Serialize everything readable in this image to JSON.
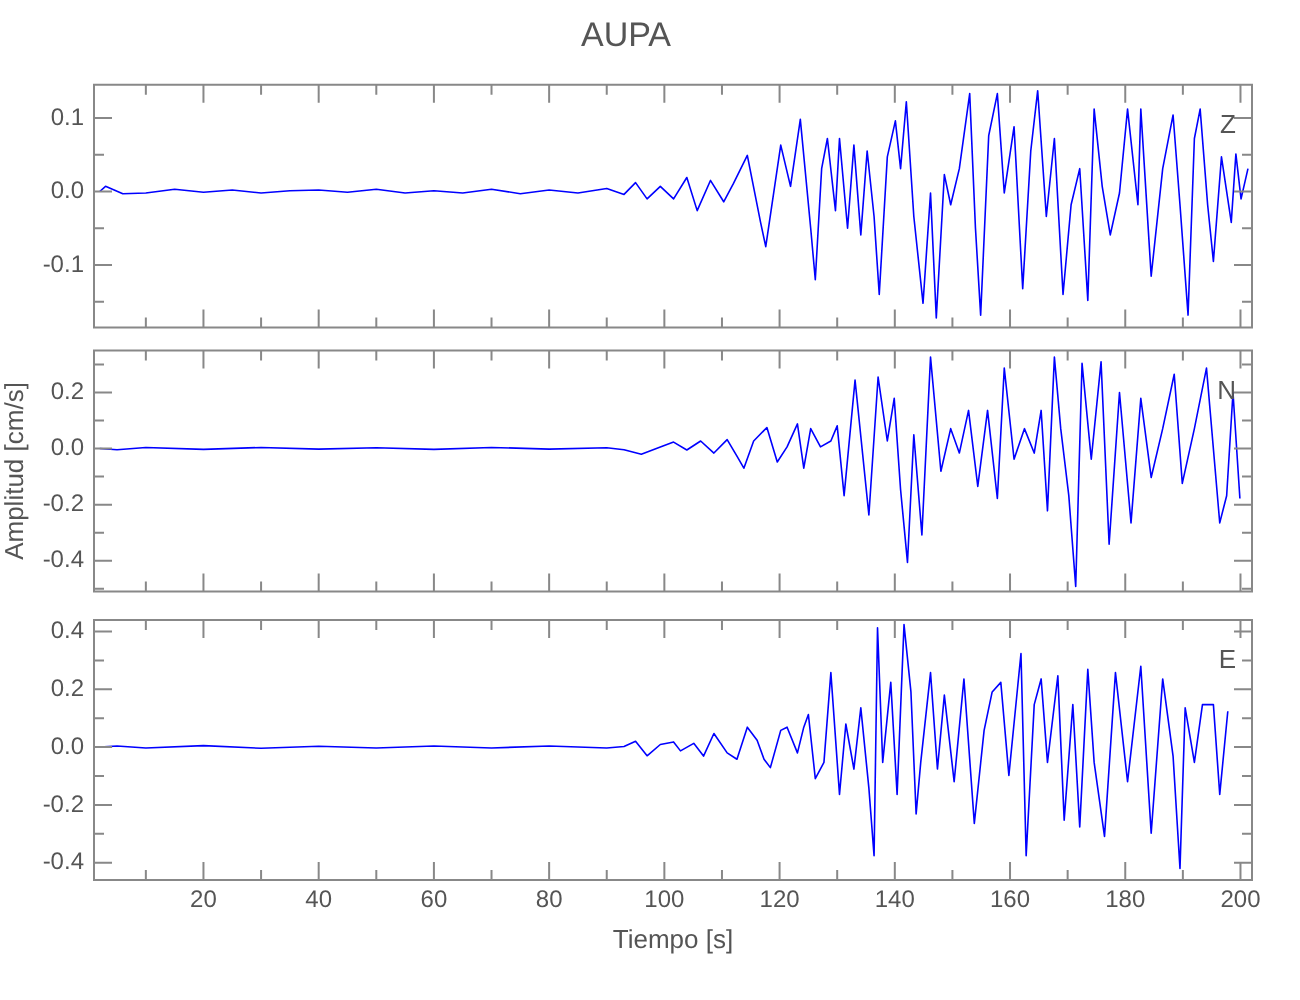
{
  "chart_data": [
    {
      "type": "line",
      "title": "AUPA",
      "color": "#0000ff",
      "marker": "none",
      "tick_labels": "y",
      "annotations": [
        "Z"
      ],
      "xlim": [
        1,
        202
      ],
      "xticks": [
        {
          "value": 10,
          "label": null
        },
        20,
        {
          "value": 30,
          "label": null
        },
        40,
        {
          "value": 50,
          "label": null
        },
        60,
        {
          "value": 70,
          "label": null
        },
        80,
        {
          "value": 90,
          "label": null
        },
        100,
        {
          "value": 110,
          "label": null
        },
        120,
        {
          "value": 130,
          "label": null
        },
        140,
        {
          "value": 150,
          "label": null
        },
        160,
        {
          "value": 170,
          "label": null
        },
        180,
        {
          "value": 190,
          "label": null
        },
        200
      ],
      "ylim": [
        -0.185,
        0.145
      ],
      "yticks": [
        {
          "value": -0.15,
          "label": null
        },
        -0.1,
        {
          "value": -0.05,
          "label": null
        },
        {
          "value": 0,
          "label": "0.0"
        },
        {
          "value": 0.05,
          "label": null
        },
        0.1
      ],
      "x": [
        2,
        3,
        6,
        10,
        15,
        20,
        25,
        30,
        35,
        40,
        45,
        50,
        55,
        60,
        65,
        70,
        75,
        80,
        85,
        90,
        93,
        95,
        97,
        99.3,
        101.6,
        103.9,
        105.7,
        108.0,
        110.3,
        112.0,
        114.4,
        116.7,
        117.6,
        120.2,
        121.9,
        123.6,
        125.4,
        126.2,
        127.3,
        128.3,
        129.7,
        130.4,
        131.8,
        132.9,
        134.1,
        135.2,
        136.4,
        137.3,
        138.7,
        140.1,
        141.0,
        142.0,
        143.3,
        144.9,
        146.2,
        147.2,
        148.6,
        149.7,
        151.2,
        153.0,
        154.0,
        154.9,
        156.3,
        157.8,
        159.0,
        160.7,
        162.2,
        163.6,
        164.8,
        166.3,
        167.7,
        169.2,
        170.6,
        172.1,
        173.5,
        174.6,
        176.0,
        177.4,
        179.0,
        180.4,
        182.2,
        182.7,
        184.5,
        186.5,
        188.3,
        189.5,
        190.9,
        192.0,
        193.0,
        194.3,
        195.3,
        196.7,
        198.4,
        199.2,
        200.1,
        201.3
      ],
      "values": [
        0.0,
        0.007,
        -0.003,
        -0.002,
        0.003,
        -0.001,
        0.002,
        -0.002,
        0.001,
        0.002,
        -0.001,
        0.003,
        -0.002,
        0.001,
        -0.002,
        0.003,
        -0.003,
        0.002,
        -0.002,
        0.004,
        -0.004,
        0.012,
        -0.01,
        0.007,
        -0.01,
        0.019,
        -0.026,
        0.015,
        -0.014,
        0.011,
        0.049,
        -0.042,
        -0.075,
        0.063,
        0.007,
        0.098,
        -0.05,
        -0.12,
        0.031,
        0.072,
        -0.026,
        0.072,
        -0.05,
        0.063,
        -0.059,
        0.055,
        -0.034,
        -0.14,
        0.047,
        0.096,
        0.031,
        0.122,
        -0.034,
        -0.152,
        -0.002,
        -0.172,
        0.023,
        -0.018,
        0.031,
        0.133,
        -0.05,
        -0.168,
        0.076,
        0.133,
        -0.002,
        0.088,
        -0.132,
        0.055,
        0.137,
        -0.034,
        0.072,
        -0.14,
        -0.018,
        0.031,
        -0.148,
        0.112,
        0.007,
        -0.059,
        -0.002,
        0.112,
        -0.018,
        0.112,
        -0.115,
        0.031,
        0.104,
        -0.018,
        -0.168,
        0.072,
        0.112,
        -0.018,
        -0.095,
        0.047,
        -0.042,
        0.051,
        -0.01,
        0.031
      ]
    },
    {
      "type": "line",
      "ylabel": "Amplitud [cm/s]",
      "color": "#0000ff",
      "marker": "none",
      "tick_labels": "y",
      "annotations": [
        "N"
      ],
      "xlim": [
        1,
        202
      ],
      "xticks": [
        {
          "value": 10,
          "label": null
        },
        20,
        {
          "value": 30,
          "label": null
        },
        40,
        {
          "value": 50,
          "label": null
        },
        60,
        {
          "value": 70,
          "label": null
        },
        80,
        {
          "value": 90,
          "label": null
        },
        100,
        {
          "value": 110,
          "label": null
        },
        120,
        {
          "value": 130,
          "label": null
        },
        140,
        {
          "value": 150,
          "label": null
        },
        160,
        {
          "value": 170,
          "label": null
        },
        180,
        {
          "value": 190,
          "label": null
        },
        200
      ],
      "ylim": [
        -0.51,
        0.35
      ],
      "yticks": [
        {
          "value": -0.5,
          "label": null
        },
        -0.4,
        {
          "value": -0.3,
          "label": null
        },
        -0.2,
        {
          "value": -0.1,
          "label": null
        },
        {
          "value": 0,
          "label": "0.0"
        },
        {
          "value": 0.1,
          "label": null
        },
        0.2,
        {
          "value": 0.3,
          "label": null
        }
      ],
      "x": [
        2,
        5,
        10,
        20,
        30,
        40,
        50,
        60,
        70,
        80,
        90,
        93,
        96,
        99.3,
        101.6,
        103.9,
        106.3,
        108.6,
        110.9,
        112.6,
        113.8,
        115.5,
        117.8,
        119.6,
        121.3,
        123.1,
        124.2,
        125.4,
        127.1,
        128.9,
        130.0,
        131.2,
        133.1,
        135.5,
        137.1,
        138.7,
        139.9,
        141.0,
        142.2,
        143.3,
        144.7,
        146.2,
        148.0,
        149.7,
        151.2,
        152.8,
        154.4,
        156.1,
        157.8,
        159.0,
        160.7,
        162.5,
        164.2,
        165.4,
        166.5,
        167.7,
        168.8,
        170.2,
        171.4,
        172.5,
        174.1,
        175.8,
        177.2,
        179.0,
        181.0,
        182.7,
        184.5,
        186.5,
        188.5,
        189.9,
        192.0,
        194.1,
        196.4,
        197.6,
        198.7,
        199.9
      ],
      "values": [
        0.0,
        -0.004,
        0.004,
        -0.003,
        0.004,
        -0.002,
        0.003,
        -0.003,
        0.004,
        -0.002,
        0.003,
        -0.004,
        -0.02,
        0.006,
        0.023,
        -0.005,
        0.027,
        -0.016,
        0.032,
        -0.027,
        -0.07,
        0.027,
        0.075,
        -0.048,
        0.006,
        0.088,
        -0.07,
        0.071,
        0.006,
        0.027,
        0.081,
        -0.168,
        0.244,
        -0.237,
        0.255,
        0.027,
        0.179,
        -0.146,
        -0.406,
        0.049,
        -0.308,
        0.326,
        -0.081,
        0.071,
        -0.016,
        0.136,
        -0.135,
        0.136,
        -0.178,
        0.287,
        -0.038,
        0.071,
        -0.016,
        0.136,
        -0.222,
        0.326,
        0.071,
        -0.168,
        -0.492,
        0.304,
        -0.038,
        0.309,
        -0.341,
        0.2,
        -0.265,
        0.179,
        -0.103,
        0.071,
        0.265,
        -0.124,
        0.071,
        0.287,
        -0.265,
        -0.168,
        0.2,
        -0.178
      ]
    },
    {
      "type": "line",
      "xlabel": "Tiempo [s]",
      "color": "#0000ff",
      "marker": "none",
      "annotations": [
        "E"
      ],
      "xlim": [
        1,
        202
      ],
      "xticks": [
        {
          "value": 10,
          "label": null
        },
        20,
        {
          "value": 30,
          "label": null
        },
        40,
        {
          "value": 50,
          "label": null
        },
        60,
        {
          "value": 70,
          "label": null
        },
        80,
        {
          "value": 90,
          "label": null
        },
        100,
        {
          "value": 110,
          "label": null
        },
        120,
        {
          "value": 130,
          "label": null
        },
        140,
        {
          "value": 150,
          "label": null
        },
        160,
        {
          "value": 170,
          "label": null
        },
        180,
        {
          "value": 190,
          "label": null
        },
        200
      ],
      "ylim": [
        -0.46,
        0.44
      ],
      "yticks": [
        -0.4,
        {
          "value": -0.3,
          "label": null
        },
        -0.2,
        {
          "value": -0.1,
          "label": null
        },
        {
          "value": 0,
          "label": "0.0"
        },
        {
          "value": 0.1,
          "label": null
        },
        0.2,
        {
          "value": 0.3,
          "label": null
        },
        0.4
      ],
      "x": [
        2,
        5,
        10,
        20,
        30,
        40,
        50,
        60,
        70,
        80,
        90,
        93,
        95,
        97,
        99.3,
        101.6,
        102.8,
        105.1,
        106.8,
        108.6,
        110.9,
        112.6,
        114.4,
        116.1,
        117.3,
        118.4,
        120.2,
        121.3,
        123.1,
        124.2,
        125.0,
        126.2,
        127.7,
        128.9,
        130.4,
        131.5,
        132.9,
        134.1,
        135.5,
        136.4,
        137.0,
        137.9,
        139.3,
        140.4,
        141.6,
        142.8,
        143.7,
        144.5,
        146.2,
        147.4,
        148.6,
        150.3,
        152.0,
        153.8,
        155.5,
        156.9,
        158.4,
        159.8,
        161.9,
        162.8,
        164.2,
        165.4,
        166.5,
        168.3,
        169.4,
        170.9,
        172.1,
        173.5,
        174.6,
        176.4,
        178.3,
        180.4,
        182.7,
        184.5,
        186.5,
        188.3,
        189.5,
        190.4,
        192.0,
        193.4,
        195.3,
        196.4,
        197.8
      ],
      "values": [
        0.0,
        0.004,
        -0.003,
        0.005,
        -0.004,
        0.003,
        -0.003,
        0.004,
        -0.003,
        0.004,
        -0.003,
        0.002,
        0.02,
        -0.03,
        0.009,
        0.018,
        -0.013,
        0.013,
        -0.031,
        0.047,
        -0.02,
        -0.042,
        0.069,
        0.024,
        -0.042,
        -0.071,
        0.058,
        0.069,
        -0.02,
        0.069,
        0.113,
        -0.109,
        -0.053,
        0.258,
        -0.164,
        0.08,
        -0.076,
        0.136,
        -0.142,
        -0.376,
        0.413,
        -0.053,
        0.224,
        -0.164,
        0.424,
        0.191,
        -0.231,
        -0.053,
        0.258,
        -0.076,
        0.18,
        -0.12,
        0.236,
        -0.264,
        0.058,
        0.191,
        0.224,
        -0.098,
        0.324,
        -0.376,
        0.147,
        0.236,
        -0.053,
        0.247,
        -0.253,
        0.147,
        -0.276,
        0.269,
        -0.053,
        -0.309,
        0.258,
        -0.12,
        0.28,
        -0.298,
        0.236,
        -0.031,
        -0.42,
        0.136,
        -0.053,
        0.147,
        0.147,
        -0.164,
        0.124
      ]
    }
  ]
}
